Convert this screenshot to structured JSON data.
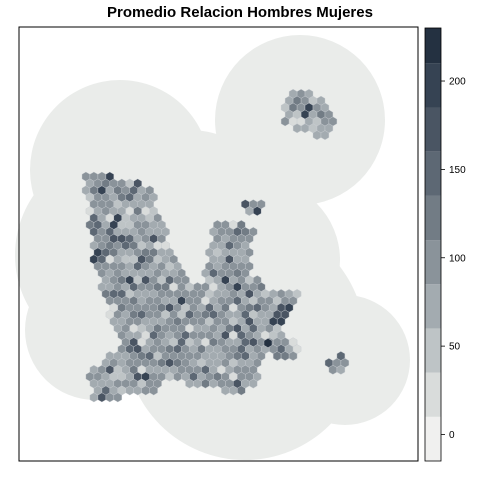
{
  "title": "Promedio Relacion Hombres Mujeres",
  "colorbar": {
    "ticks": [
      {
        "value": 0,
        "label": "0"
      },
      {
        "value": 50,
        "label": "50"
      },
      {
        "value": 100,
        "label": "100"
      },
      {
        "value": 150,
        "label": "150"
      },
      {
        "value": 200,
        "label": "200"
      }
    ],
    "range": [
      -15,
      230
    ],
    "bins": [
      {
        "from": -15,
        "to": 10,
        "color": "#f0f0ef"
      },
      {
        "from": 10,
        "to": 35,
        "color": "#d9dcdb"
      },
      {
        "from": 35,
        "to": 60,
        "color": "#bec4c6"
      },
      {
        "from": 60,
        "to": 85,
        "color": "#a3abb0"
      },
      {
        "from": 85,
        "to": 110,
        "color": "#8a939a"
      },
      {
        "from": 110,
        "to": 135,
        "color": "#727c85"
      },
      {
        "from": 135,
        "to": 160,
        "color": "#5d6874"
      },
      {
        "from": 160,
        "to": 185,
        "color": "#4a5563"
      },
      {
        "from": 185,
        "to": 210,
        "color": "#364353"
      },
      {
        "from": 210,
        "to": 230,
        "color": "#243141"
      }
    ]
  },
  "colors": {
    "background_region": "#eaecea",
    "frame": "#000000",
    "hex_stroke": "#c8ccd0"
  }
}
